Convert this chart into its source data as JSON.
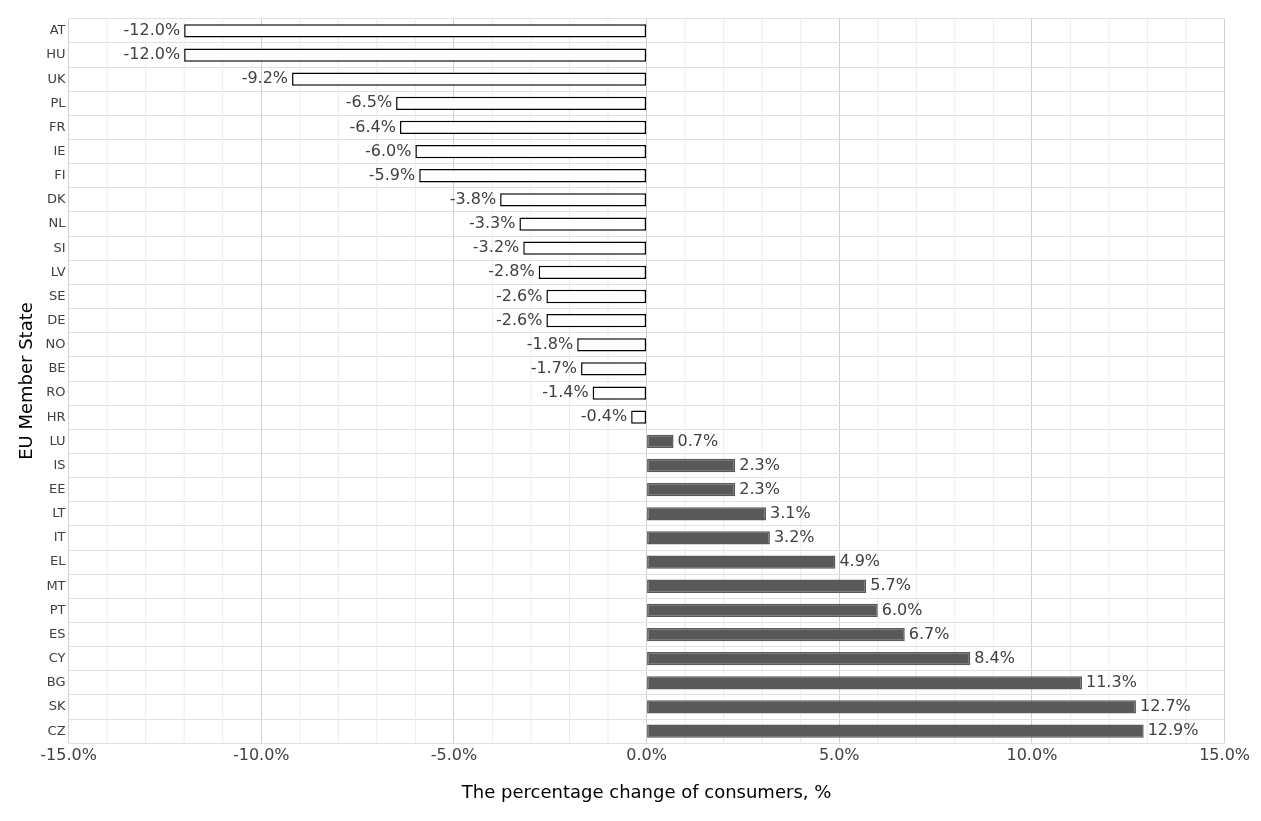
{
  "chart_data": {
    "type": "bar",
    "orientation": "horizontal",
    "xlabel": "The percentage change of consumers, %",
    "ylabel": "EU Member State",
    "categories": [
      "AT",
      "HU",
      "UK",
      "PL",
      "FR",
      "IE",
      "FI",
      "DK",
      "NL",
      "SI",
      "LV",
      "SE",
      "DE",
      "NO",
      "BE",
      "RO",
      "HR",
      "LU",
      "IS",
      "EE",
      "LT",
      "IT",
      "EL",
      "MT",
      "PT",
      "ES",
      "CY",
      "BG",
      "SK",
      "CZ"
    ],
    "values": [
      -12.0,
      -12.0,
      -9.2,
      -6.5,
      -6.4,
      -6.0,
      -5.9,
      -3.8,
      -3.3,
      -3.2,
      -2.8,
      -2.6,
      -2.6,
      -1.8,
      -1.7,
      -1.4,
      -0.4,
      0.7,
      2.3,
      2.3,
      3.1,
      3.2,
      4.9,
      5.7,
      6.0,
      6.7,
      8.4,
      11.3,
      12.7,
      12.9
    ],
    "value_labels": [
      "-12.0%",
      "-12.0%",
      "-9.2%",
      "-6.5%",
      "-6.4%",
      "-6.0%",
      "-5.9%",
      "-3.8%",
      "-3.3%",
      "-3.2%",
      "-2.8%",
      "-2.6%",
      "-2.6%",
      "-1.8%",
      "-1.7%",
      "-1.4%",
      "-0.4%",
      "0.7%",
      "2.3%",
      "2.3%",
      "3.1%",
      "3.2%",
      "4.9%",
      "5.7%",
      "6.0%",
      "6.7%",
      "8.4%",
      "11.3%",
      "12.7%",
      "12.9%"
    ],
    "colors": [
      "#ffffff",
      "#ffffff",
      "#ffffff",
      "#ffffff",
      "#ffffff",
      "#ffffff",
      "#ffffff",
      "#ffffff",
      "#ffffff",
      "#ffffff",
      "#ffffff",
      "#ffffff",
      "#ffffff",
      "#ffffff",
      "#ffffff",
      "#ffffff",
      "#ffffff",
      "#595959",
      "#595959",
      "#595959",
      "#595959",
      "#595959",
      "#595959",
      "#595959",
      "#595959",
      "#595959",
      "#595959",
      "#595959",
      "#595959",
      "#595959"
    ],
    "xlim": [
      -15,
      15
    ],
    "xticks": [
      {
        "value": -15,
        "label": "-15.0%"
      },
      {
        "value": -10,
        "label": "-10.0%"
      },
      {
        "value": -5,
        "label": "-5.0%"
      },
      {
        "value": 0,
        "label": "0.0%"
      },
      {
        "value": 5,
        "label": "5.0%"
      },
      {
        "value": 10,
        "label": "10.0%"
      },
      {
        "value": 15,
        "label": "15.0%"
      }
    ],
    "grid": true,
    "legend": false
  }
}
